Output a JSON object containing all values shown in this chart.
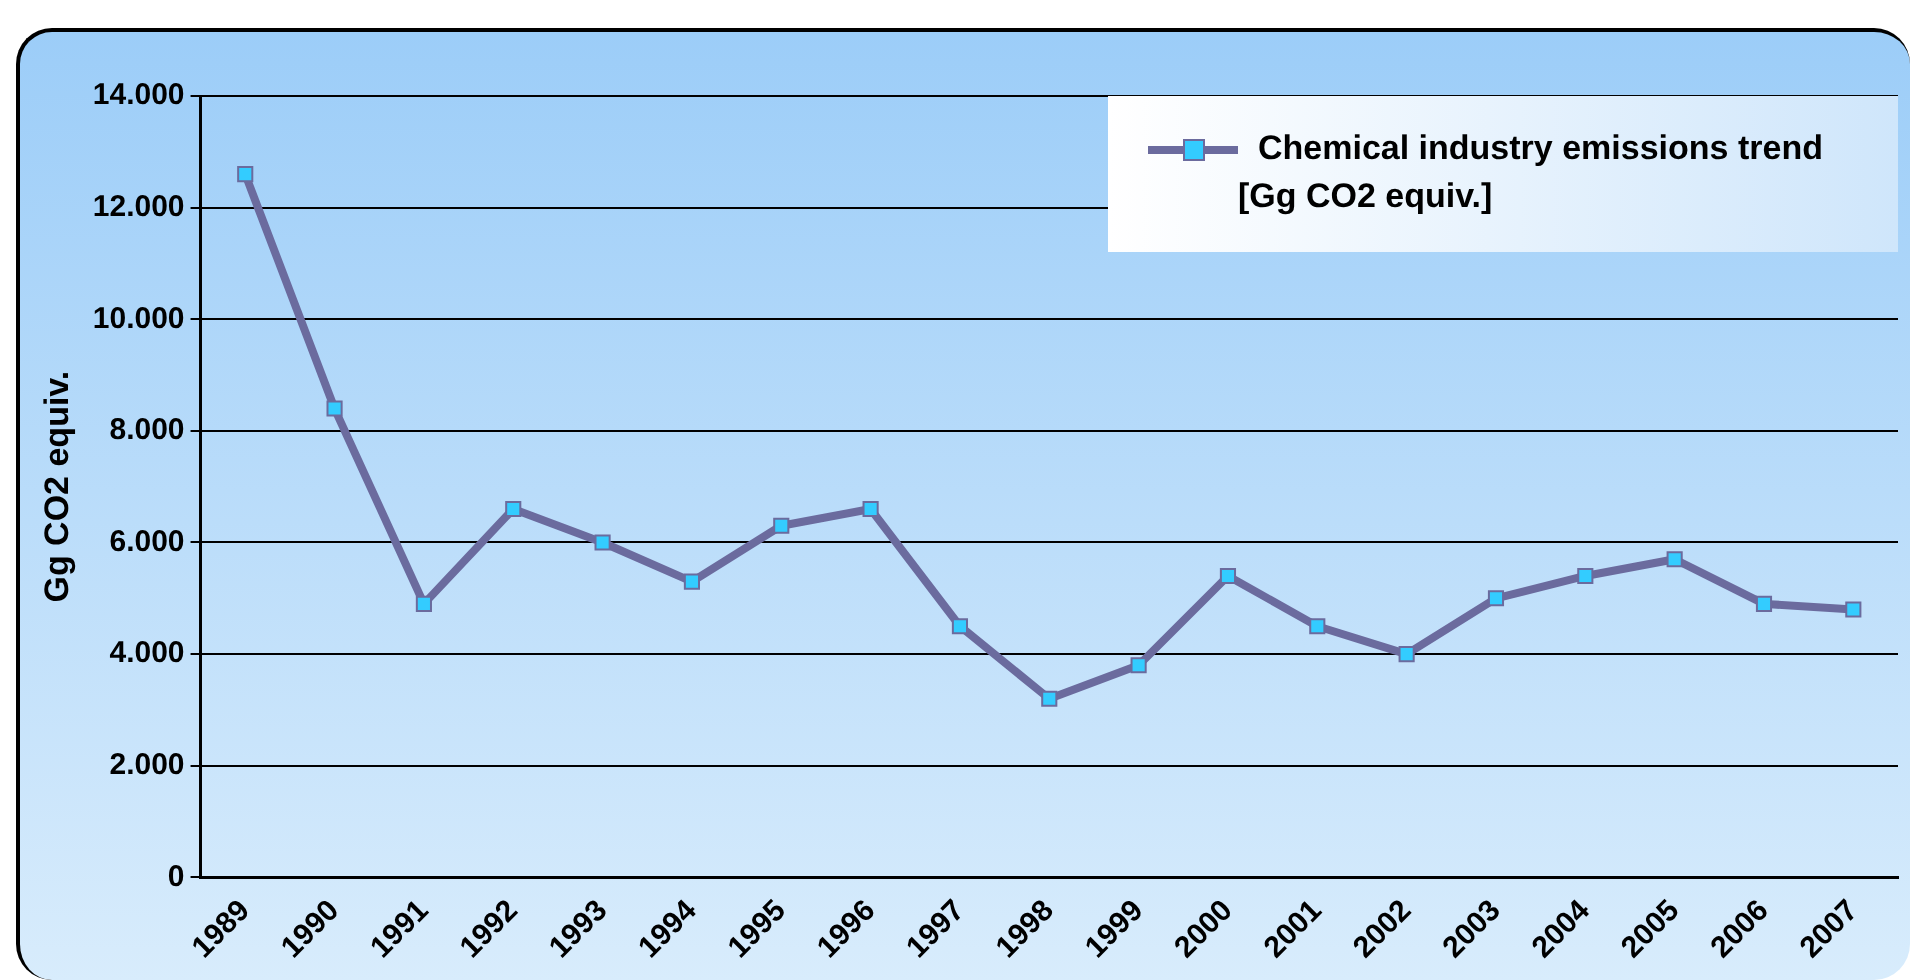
{
  "chart_data": {
    "type": "line",
    "ylabel": "Gg CO2 equiv.",
    "categories": [
      "1989",
      "1990",
      "1991",
      "1992",
      "1993",
      "1994",
      "1995",
      "1996",
      "1997",
      "1998",
      "1999",
      "2000",
      "2001",
      "2002",
      "2003",
      "2004",
      "2005",
      "2006",
      "2007"
    ],
    "series": [
      {
        "name": "Chemical industry emissions trend [Gg CO2 equiv.]",
        "color": "#6b6b9e",
        "values": [
          12600,
          8400,
          4900,
          6600,
          6000,
          5300,
          6300,
          6600,
          4500,
          3200,
          3800,
          5400,
          4500,
          4000,
          5000,
          5400,
          5700,
          4900,
          4800
        ]
      }
    ],
    "ylim": [
      0,
      14000
    ],
    "yticks": [
      0,
      {
        "value": 2000,
        "label": "2.000"
      },
      {
        "value": 4000,
        "label": "4.000"
      },
      {
        "value": 6000,
        "label": "6.000"
      },
      {
        "value": 8000,
        "label": "8.000"
      },
      {
        "value": 10000,
        "label": "10.000"
      },
      {
        "value": 12000,
        "label": "12.000"
      },
      {
        "value": 14000,
        "label": "14.000"
      }
    ],
    "grid": "y",
    "legend": "top right",
    "marker": "square",
    "line_style": "solid"
  }
}
